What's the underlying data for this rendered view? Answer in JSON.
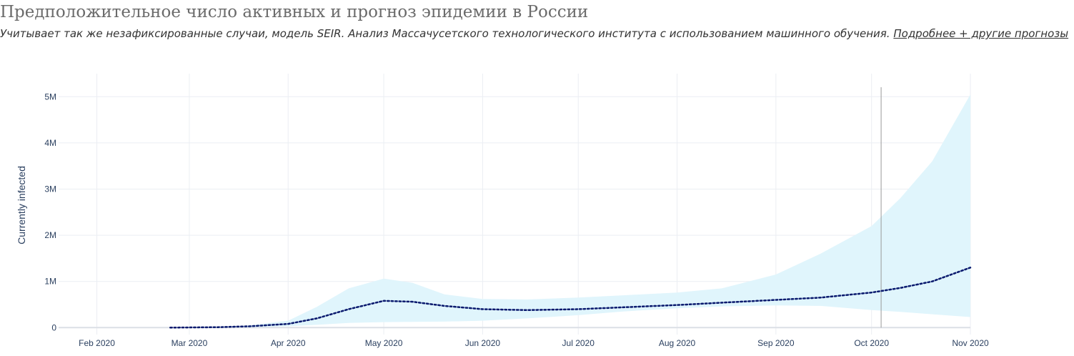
{
  "header": {
    "title": "Предположительное число активных и прогноз эпидемии в России",
    "subtitle": "Учитывает так же незафиксированные случаи, модель SEIR. Анализ Массачусетского технологического института с использованием машинного обучения.",
    "link_label": "Подробнее + другие прогнозы"
  },
  "colors": {
    "band": "#e0f5fc",
    "line": "#0a1a6e",
    "grid": "#ebeef3",
    "zeroline": "#dcdfe6",
    "marker": "#999999"
  },
  "chart_data": {
    "type": "line",
    "title": "",
    "xlabel": "",
    "ylabel": "Currently infected",
    "x_range": [
      "2020-01-20",
      "2020-11-01"
    ],
    "ylim": [
      -150000,
      5500000
    ],
    "y_ticks": [
      0,
      1000000,
      2000000,
      3000000,
      4000000,
      5000000
    ],
    "y_tick_labels": [
      "0",
      "1M",
      "2M",
      "3M",
      "4M",
      "5M"
    ],
    "x_ticks": [
      "2020-02-01",
      "2020-03-01",
      "2020-04-01",
      "2020-05-01",
      "2020-06-01",
      "2020-07-01",
      "2020-08-01",
      "2020-09-01",
      "2020-10-01",
      "2020-11-01"
    ],
    "x_tick_labels": [
      "Feb 2020",
      "Mar 2020",
      "Apr 2020",
      "May 2020",
      "Jun 2020",
      "Jul 2020",
      "Aug 2020",
      "Sep 2020",
      "Oct 2020",
      "Nov 2020"
    ],
    "grid": true,
    "vline": "2020-10-04",
    "series": [
      {
        "style": "dotted",
        "x": [
          "2020-02-24",
          "2020-03-10",
          "2020-03-20",
          "2020-04-01",
          "2020-04-10",
          "2020-04-20",
          "2020-05-01",
          "2020-05-10",
          "2020-05-20",
          "2020-06-01",
          "2020-06-15",
          "2020-07-01",
          "2020-07-15",
          "2020-08-01",
          "2020-08-15",
          "2020-09-01",
          "2020-09-15",
          "2020-10-01",
          "2020-10-10",
          "2020-10-20",
          "2020-11-01"
        ],
        "y": [
          0,
          10000,
          30000,
          80000,
          200000,
          400000,
          580000,
          560000,
          470000,
          400000,
          380000,
          400000,
          440000,
          490000,
          540000,
          600000,
          650000,
          760000,
          860000,
          1000000,
          1300000
        ]
      }
    ],
    "band": {
      "x": [
        "2020-02-24",
        "2020-03-10",
        "2020-03-20",
        "2020-04-01",
        "2020-04-10",
        "2020-04-20",
        "2020-05-01",
        "2020-05-10",
        "2020-05-20",
        "2020-06-01",
        "2020-06-15",
        "2020-07-01",
        "2020-07-15",
        "2020-08-01",
        "2020-08-15",
        "2020-09-01",
        "2020-09-15",
        "2020-10-01",
        "2020-10-10",
        "2020-10-20",
        "2020-11-01"
      ],
      "upper": [
        0,
        15000,
        50000,
        150000,
        450000,
        850000,
        1060000,
        970000,
        720000,
        620000,
        610000,
        650000,
        700000,
        760000,
        850000,
        1150000,
        1600000,
        2200000,
        2800000,
        3600000,
        5050000
      ],
      "lower": [
        0,
        5000,
        10000,
        30000,
        60000,
        100000,
        120000,
        125000,
        130000,
        150000,
        200000,
        270000,
        350000,
        420000,
        460000,
        480000,
        470000,
        380000,
        340000,
        290000,
        230000
      ]
    }
  }
}
